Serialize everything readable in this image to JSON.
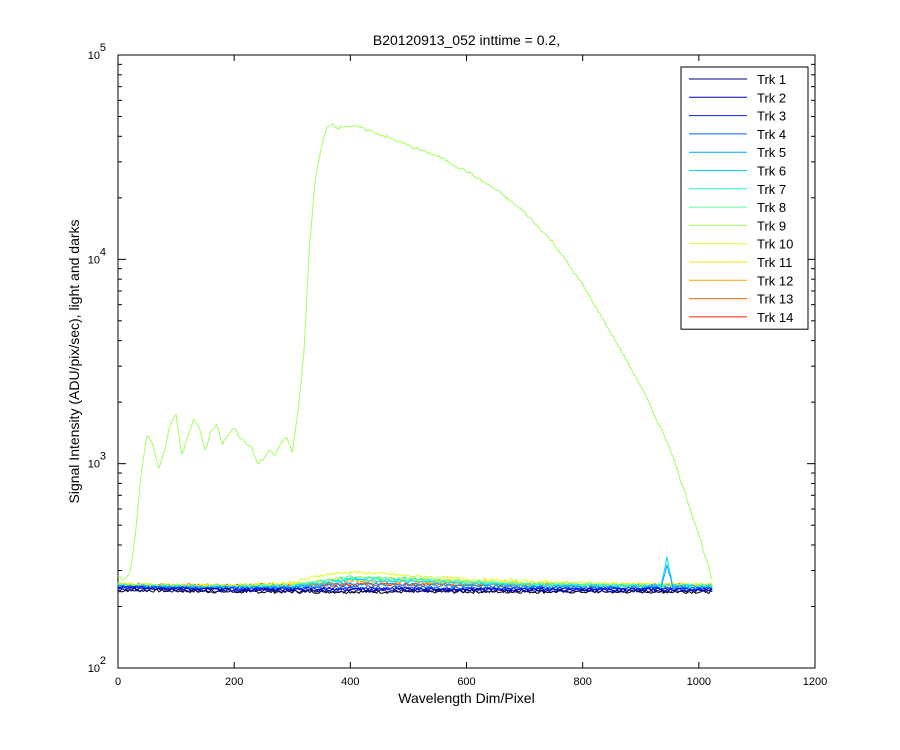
{
  "chart_data": {
    "type": "line",
    "title": "B20120913_052 inttime = 0.2,",
    "xlabel": "Wavelength Dim/Pixel",
    "ylabel": "Signal Intensity (ADU/pix/sec), light and darks",
    "xlim": [
      0,
      1200
    ],
    "ylim": [
      100,
      100000
    ],
    "yscale": "log",
    "xticks": [
      "0",
      "200",
      "400",
      "600",
      "800",
      "1000",
      "1200"
    ],
    "yticks": [
      {
        "base": "10",
        "exp": "2"
      },
      {
        "base": "10",
        "exp": "3"
      },
      {
        "base": "10",
        "exp": "4"
      },
      {
        "base": "10",
        "exp": "5"
      }
    ],
    "grid": false,
    "legend_position": "top-right",
    "colors": [
      "#00008f",
      "#0000bf",
      "#0020ff",
      "#0060ff",
      "#00a0ff",
      "#00dfff",
      "#20ffdf",
      "#60ffa0",
      "#a0ff60",
      "#dfff20",
      "#ffdf00",
      "#ffa000",
      "#ff6000",
      "#ff2000"
    ],
    "series": [
      {
        "name": "Trk 1",
        "color": "#00008f",
        "x": [
          0,
          20,
          100,
          200,
          300,
          400,
          500,
          600,
          700,
          800,
          900,
          1000,
          1023
        ],
        "y": [
          240,
          242,
          240,
          238,
          238,
          238,
          238,
          238,
          238,
          238,
          238,
          238,
          238
        ]
      },
      {
        "name": "Trk 2",
        "color": "#0000bf",
        "x": [
          0,
          20,
          100,
          200,
          300,
          400,
          500,
          600,
          700,
          800,
          900,
          1000,
          1023
        ],
        "y": [
          245,
          246,
          244,
          242,
          242,
          242,
          242,
          242,
          242,
          242,
          242,
          242,
          242
        ]
      },
      {
        "name": "Trk 3",
        "color": "#0020ff",
        "x": [
          0,
          20,
          100,
          200,
          300,
          400,
          500,
          600,
          700,
          800,
          900,
          1000,
          1023
        ],
        "y": [
          247,
          248,
          246,
          244,
          244,
          245,
          245,
          244,
          244,
          244,
          244,
          244,
          244
        ]
      },
      {
        "name": "Trk 4",
        "color": "#0060ff",
        "x": [
          0,
          20,
          100,
          200,
          300,
          400,
          500,
          600,
          700,
          800,
          900,
          1000,
          1023
        ],
        "y": [
          249,
          249,
          247,
          246,
          246,
          248,
          248,
          247,
          246,
          246,
          246,
          246,
          246
        ]
      },
      {
        "name": "Trk 5",
        "color": "#00a0ff",
        "x": [
          0,
          20,
          100,
          200,
          300,
          400,
          500,
          600,
          700,
          800,
          900,
          935,
          945,
          955,
          1000,
          1023
        ],
        "y": [
          250,
          250,
          248,
          247,
          248,
          258,
          256,
          252,
          250,
          249,
          248,
          250,
          320,
          250,
          248,
          248
        ]
      },
      {
        "name": "Trk 6",
        "color": "#00dfff",
        "x": [
          0,
          20,
          100,
          200,
          300,
          400,
          500,
          600,
          700,
          800,
          900,
          935,
          945,
          955,
          1000,
          1023
        ],
        "y": [
          252,
          252,
          250,
          249,
          250,
          270,
          266,
          258,
          254,
          252,
          251,
          253,
          350,
          253,
          251,
          251
        ]
      },
      {
        "name": "Trk 7",
        "color": "#20ffdf",
        "x": [
          0,
          20,
          100,
          200,
          300,
          400,
          500,
          600,
          700,
          800,
          900,
          1000,
          1023
        ],
        "y": [
          253,
          253,
          251,
          250,
          252,
          275,
          270,
          262,
          257,
          254,
          253,
          252,
          252
        ]
      },
      {
        "name": "Trk 8",
        "color": "#60ffa0",
        "x": [
          0,
          20,
          100,
          200,
          300,
          400,
          500,
          600,
          700,
          800,
          900,
          1000,
          1023
        ],
        "y": [
          254,
          254,
          252,
          251,
          254,
          280,
          274,
          265,
          259,
          255,
          254,
          253,
          253
        ]
      },
      {
        "name": "Trk 9",
        "color": "#a0ff60",
        "x": [
          0,
          10,
          20,
          30,
          40,
          50,
          60,
          70,
          80,
          90,
          100,
          110,
          120,
          130,
          140,
          150,
          160,
          170,
          180,
          190,
          200,
          210,
          220,
          230,
          240,
          250,
          260,
          270,
          280,
          290,
          300,
          310,
          320,
          330,
          340,
          350,
          360,
          370,
          380,
          390,
          400,
          420,
          440,
          460,
          480,
          500,
          550,
          600,
          650,
          700,
          750,
          800,
          850,
          900,
          950,
          1000,
          1023
        ],
        "y": [
          280,
          270,
          290,
          450,
          900,
          1380,
          1250,
          950,
          1150,
          1550,
          1750,
          1100,
          1350,
          1650,
          1500,
          1150,
          1450,
          1550,
          1250,
          1400,
          1500,
          1350,
          1250,
          1200,
          1000,
          1050,
          1150,
          1100,
          1250,
          1350,
          1150,
          1800,
          3500,
          12000,
          25000,
          35000,
          45000,
          46000,
          44000,
          45000,
          45000,
          44000,
          42000,
          40000,
          38000,
          36000,
          32000,
          27000,
          22000,
          17000,
          12000,
          7500,
          4300,
          2400,
          1200,
          450,
          270
        ]
      },
      {
        "name": "Trk 10",
        "color": "#dfff20",
        "x": [
          0,
          20,
          100,
          200,
          300,
          350,
          400,
          450,
          500,
          600,
          700,
          800,
          900,
          1000,
          1023
        ],
        "y": [
          258,
          258,
          255,
          254,
          262,
          285,
          295,
          290,
          282,
          272,
          266,
          261,
          258,
          257,
          257
        ]
      },
      {
        "name": "Trk 11",
        "color": "#ffdf00",
        "x": [
          0,
          20,
          100,
          200,
          300,
          400,
          500,
          600,
          700,
          800,
          900,
          1000,
          1023
        ],
        "y": [
          256,
          256,
          254,
          253,
          258,
          278,
          272,
          266,
          262,
          258,
          256,
          255,
          255
        ]
      },
      {
        "name": "Trk 12",
        "color": "#ffa000",
        "x": [
          0,
          20,
          100,
          200,
          300,
          400,
          500,
          600,
          700,
          800,
          900,
          1000,
          1023
        ],
        "y": [
          255,
          255,
          253,
          252,
          255,
          268,
          265,
          261,
          258,
          255,
          254,
          253,
          253
        ]
      },
      {
        "name": "Trk 13",
        "color": "#ff6000",
        "x": [
          0,
          20,
          100,
          200,
          300,
          400,
          500,
          600,
          700,
          800,
          900,
          1000,
          1023
        ],
        "y": [
          254,
          254,
          253,
          252,
          253,
          258,
          257,
          255,
          254,
          253,
          253,
          253,
          253
        ]
      },
      {
        "name": "Trk 14",
        "color": "#ff2000",
        "x": [
          0,
          20,
          100,
          200,
          300,
          400,
          500,
          600,
          700,
          800,
          900,
          1000,
          1023
        ],
        "y": [
          256,
          256,
          255,
          255,
          255,
          256,
          256,
          256,
          255,
          255,
          255,
          255,
          255
        ]
      },
      {
        "name": "",
        "color": "#000000",
        "x": [
          0,
          20,
          100,
          200,
          300,
          400,
          500,
          600,
          700,
          800,
          900,
          1000,
          1023
        ],
        "y": [
          238,
          240,
          238,
          236,
          236,
          236,
          236,
          236,
          236,
          236,
          236,
          236,
          236
        ]
      }
    ]
  }
}
